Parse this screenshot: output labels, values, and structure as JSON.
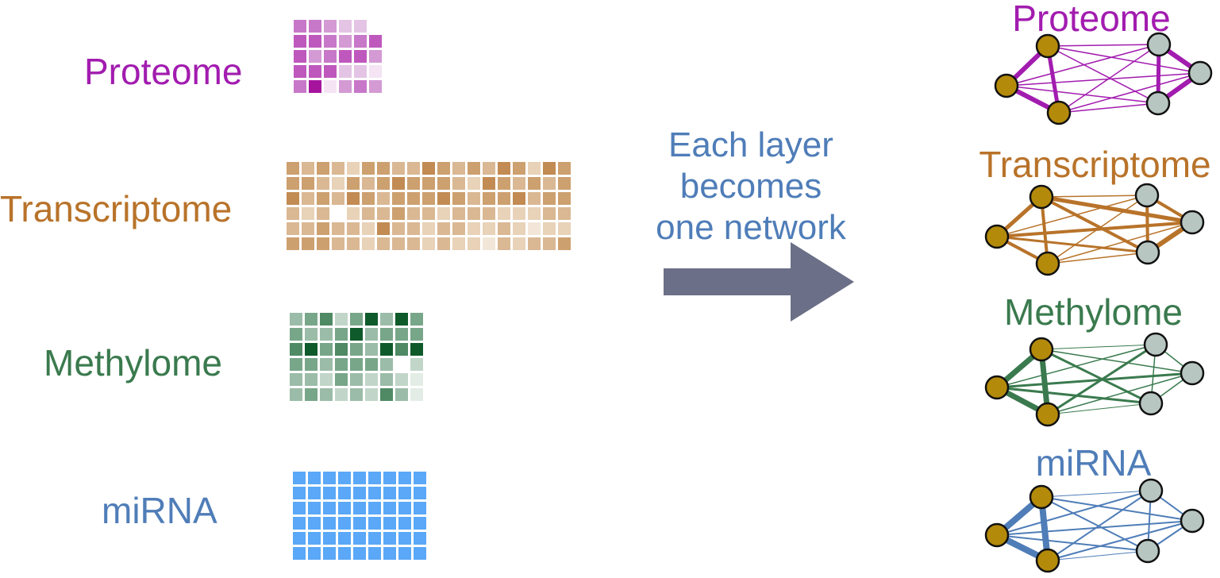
{
  "colors": {
    "proteome": "#a21caf",
    "transcriptome": "#b8732a",
    "methylome": "#3a7a4e",
    "mirna": "#4f7db8",
    "arrow": "#6b6f87",
    "caption": "#4f7db8",
    "node_gold": "#b48a0a",
    "node_grey": "#b8c6c2",
    "mirna_cell": "#5aa8f7"
  },
  "layers": [
    {
      "key": "proteome",
      "label": "Proteome",
      "cols": 6,
      "palette": [
        "#a6149e",
        "#bf58bd",
        "#c878c8",
        "#d49ad4",
        "#e4c4e4",
        "#f4e4f4",
        "none"
      ]
    },
    {
      "key": "transcriptome",
      "label": "Transcriptome",
      "cols": 19,
      "palette": [
        "#a75a12",
        "#c28b53",
        "#cda06f",
        "#dab894",
        "#e8d2b8",
        "#f2e6d8",
        "none"
      ]
    },
    {
      "key": "methylome",
      "label": "Methylome",
      "cols": 9,
      "palette": [
        "#0f5a2a",
        "#4f8a64",
        "#78a689",
        "#9bbca8",
        "#c1d6c9",
        "#e3ede6",
        "none"
      ]
    },
    {
      "key": "mirna",
      "label": "miRNA",
      "cols": 9,
      "palette": [
        "#5aa8f7"
      ]
    }
  ],
  "caption": {
    "line1": "Each layer",
    "line2": "becomes",
    "line3": "one network"
  },
  "icons": {
    "arrow": "right-arrow-icon"
  },
  "networks": [
    {
      "key": "proteome",
      "label": "Proteome"
    },
    {
      "key": "transcriptome",
      "label": "Transcriptome"
    },
    {
      "key": "methylome",
      "label": "Methylome"
    },
    {
      "key": "mirna",
      "label": "miRNA"
    }
  ]
}
